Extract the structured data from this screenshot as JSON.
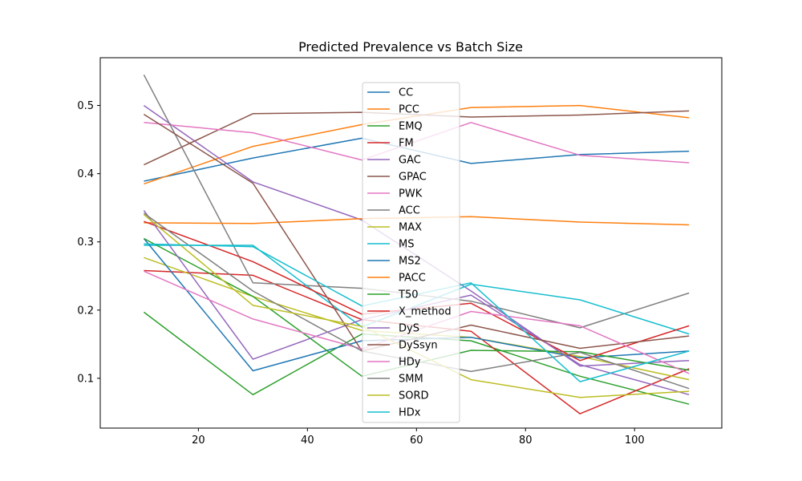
{
  "chart_data": {
    "type": "line",
    "title": "Predicted Prevalence vs Batch Size",
    "xlabel": "",
    "ylabel": "",
    "x": [
      10,
      30,
      50,
      70,
      90,
      110
    ],
    "xlim": [
      2,
      116
    ],
    "ylim": [
      0.027,
      0.57
    ],
    "xticks": [
      20,
      40,
      60,
      80,
      100
    ],
    "yticks": [
      0.1,
      0.2,
      0.3,
      0.4,
      0.5
    ],
    "grid": false,
    "legend_position": "center-top",
    "series": [
      {
        "name": "CC",
        "color": "#1f77b4",
        "values": [
          0.389,
          0.423,
          0.452,
          0.415,
          0.428,
          0.433
        ]
      },
      {
        "name": "PCC",
        "color": "#ff7f0e",
        "values": [
          0.385,
          0.44,
          0.472,
          0.497,
          0.5,
          0.482
        ]
      },
      {
        "name": "EMQ",
        "color": "#2ca02c",
        "values": [
          0.197,
          0.076,
          0.165,
          0.155,
          0.103,
          0.062
        ]
      },
      {
        "name": "FM",
        "color": "#d62728",
        "values": [
          0.258,
          0.251,
          0.186,
          0.169,
          0.048,
          0.114
        ]
      },
      {
        "name": "GAC",
        "color": "#9467bd",
        "values": [
          0.5,
          0.388,
          0.332,
          0.228,
          0.118,
          0.126
        ]
      },
      {
        "name": "GPAC",
        "color": "#8c564b",
        "values": [
          0.413,
          0.488,
          0.49,
          0.483,
          0.486,
          0.492
        ]
      },
      {
        "name": "PWK",
        "color": "#e377c2",
        "values": [
          0.475,
          0.46,
          0.42,
          0.475,
          0.427,
          0.416
        ]
      },
      {
        "name": "ACC",
        "color": "#7f7f7f",
        "values": [
          0.545,
          0.24,
          0.232,
          0.213,
          0.174,
          0.225
        ]
      },
      {
        "name": "MAX",
        "color": "#bcbd22",
        "values": [
          0.277,
          0.22,
          0.17,
          0.16,
          0.132,
          0.098
        ]
      },
      {
        "name": "MS",
        "color": "#17becf",
        "values": [
          0.295,
          0.295,
          0.175,
          0.238,
          0.215,
          0.165
        ]
      },
      {
        "name": "MS2",
        "color": "#1f77b4",
        "values": [
          0.305,
          0.111,
          0.155,
          0.16,
          0.13,
          0.14
        ]
      },
      {
        "name": "PACC",
        "color": "#ff7f0e",
        "values": [
          0.328,
          0.327,
          0.334,
          0.337,
          0.329,
          0.325
        ]
      },
      {
        "name": "T50",
        "color": "#2ca02c",
        "values": [
          0.305,
          0.22,
          0.103,
          0.141,
          0.139,
          0.112
        ]
      },
      {
        "name": "X_method",
        "color": "#d62728",
        "values": [
          0.33,
          0.271,
          0.194,
          0.21,
          0.126,
          0.177
        ]
      },
      {
        "name": "DyS",
        "color": "#9467bd",
        "values": [
          0.346,
          0.128,
          0.186,
          0.222,
          0.12,
          0.076
        ]
      },
      {
        "name": "DySsyn",
        "color": "#8c564b",
        "values": [
          0.487,
          0.386,
          0.14,
          0.178,
          0.144,
          0.162
        ]
      },
      {
        "name": "HDy",
        "color": "#e377c2",
        "values": [
          0.257,
          0.187,
          0.143,
          0.198,
          0.177,
          0.107
        ]
      },
      {
        "name": "SMM",
        "color": "#7f7f7f",
        "values": [
          0.342,
          0.228,
          0.14,
          0.11,
          0.138,
          0.085
        ]
      },
      {
        "name": "SORD",
        "color": "#bcbd22",
        "values": [
          0.34,
          0.207,
          0.176,
          0.098,
          0.072,
          0.081
        ]
      },
      {
        "name": "HDx",
        "color": "#17becf",
        "values": [
          0.297,
          0.293,
          0.206,
          0.24,
          0.095,
          0.14
        ]
      }
    ]
  }
}
